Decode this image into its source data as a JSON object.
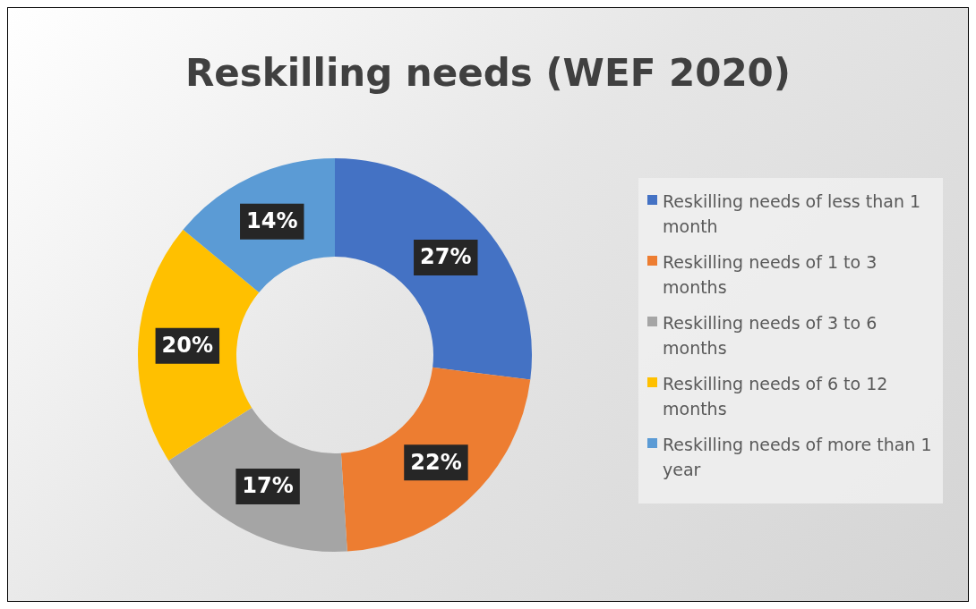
{
  "chart_data": {
    "type": "donut",
    "title": "Reskilling needs (WEF 2020)",
    "categories": [
      "Reskilling needs of less than 1 month",
      "Reskilling needs of 1 to 3 months",
      "Reskilling needs of 3 to 6 months",
      "Reskilling needs of 6 to 12 months",
      "Reskilling needs of more than 1 year"
    ],
    "values": [
      27,
      22,
      17,
      20,
      14
    ],
    "value_labels": [
      "27%",
      "22%",
      "17%",
      "20%",
      "14%"
    ],
    "colors": [
      "#4472c4",
      "#ed7d31",
      "#a5a5a5",
      "#ffc000",
      "#5b9bd5"
    ],
    "legend": "right"
  }
}
